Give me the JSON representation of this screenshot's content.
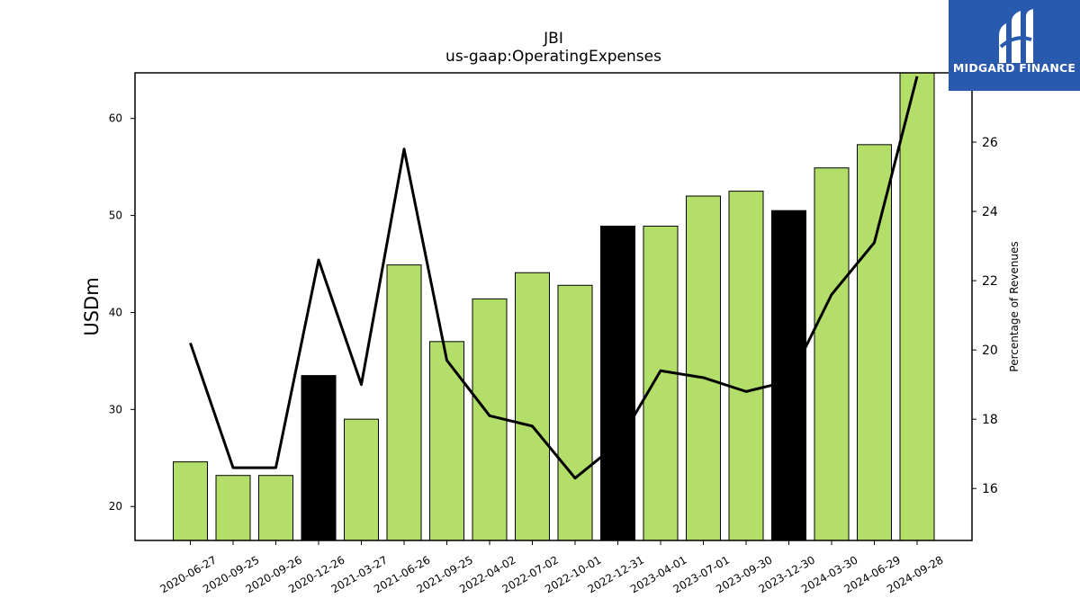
{
  "chart_data": {
    "type": "bar",
    "title": "JBI",
    "subtitle": "us-gaap:OperatingExpenses",
    "ylabel": "USDm",
    "y2label": "Percentage of Revenues",
    "categories": [
      "2020-06-27",
      "2020-09-25",
      "2020-09-26",
      "2020-12-26",
      "2021-03-27",
      "2021-06-26",
      "2021-09-25",
      "2022-04-02",
      "2022-07-02",
      "2022-10-01",
      "2022-12-31",
      "2023-04-01",
      "2023-07-01",
      "2023-09-30",
      "2023-12-30",
      "2024-03-30",
      "2024-06-29",
      "2024-09-28"
    ],
    "values": [
      24.6,
      23.2,
      23.2,
      33.5,
      29.0,
      44.9,
      37.0,
      41.4,
      44.1,
      42.8,
      48.9,
      48.9,
      52.0,
      52.5,
      50.5,
      54.9,
      57.3,
      64.8
    ],
    "bar_colors": [
      "#b3de69",
      "#b3de69",
      "#b3de69",
      "#000000",
      "#b3de69",
      "#b3de69",
      "#b3de69",
      "#b3de69",
      "#b3de69",
      "#b3de69",
      "#000000",
      "#b3de69",
      "#b3de69",
      "#b3de69",
      "#000000",
      "#b3de69",
      "#b3de69",
      "#b3de69"
    ],
    "line_values": [
      20.2,
      16.6,
      16.6,
      22.6,
      19.0,
      25.8,
      19.7,
      18.1,
      17.8,
      16.3,
      17.3,
      19.4,
      19.2,
      18.8,
      19.1,
      21.6,
      23.1,
      27.9
    ],
    "ylim": [
      16.5,
      64.7
    ],
    "y2lim": [
      14.5,
      28.0
    ],
    "yticks": [
      20,
      30,
      40,
      50,
      60
    ],
    "y2ticks": [
      16,
      18,
      20,
      22,
      24,
      26
    ],
    "grid": false,
    "legend": "none"
  },
  "logo": {
    "text": "MIDGARD FINANCE"
  },
  "colors": {
    "bar_green": "#b3de69",
    "bar_black": "#000000",
    "logo_bg": "#2a5aae"
  }
}
